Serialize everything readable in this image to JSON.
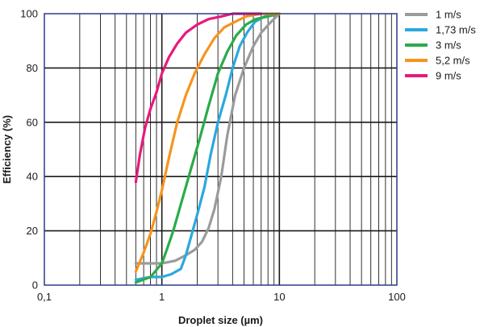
{
  "chart_data": {
    "type": "line",
    "title": "",
    "xlabel": "Droplet size (µm)",
    "ylabel": "Efficiency (%)",
    "x_scale": "log",
    "xlim": [
      0.1,
      100
    ],
    "ylim": [
      0,
      100
    ],
    "grid": true,
    "legend_position": "right",
    "x_tick_labels": [
      {
        "value": 0.1,
        "label": "0,1"
      },
      {
        "value": 1,
        "label": "1"
      },
      {
        "value": 10,
        "label": "10"
      },
      {
        "value": 100,
        "label": "100"
      }
    ],
    "y_tick_labels": [
      {
        "value": 0,
        "label": "0"
      },
      {
        "value": 20,
        "label": "20"
      },
      {
        "value": 40,
        "label": "40"
      },
      {
        "value": 60,
        "label": "60"
      },
      {
        "value": 80,
        "label": "80"
      },
      {
        "value": 100,
        "label": "100"
      }
    ],
    "series": [
      {
        "name": "1 m/s",
        "color": "#9b9b9b",
        "x": [
          0.6,
          0.8,
          1.0,
          1.3,
          1.6,
          1.9,
          2.2,
          2.5,
          2.8,
          3.2,
          3.6,
          4.2,
          5.0,
          6.0,
          7.0,
          8.5,
          10.0
        ],
        "y": [
          8,
          8,
          8,
          9,
          11,
          13,
          16,
          21,
          28,
          40,
          55,
          70,
          80,
          88,
          93,
          97,
          100
        ]
      },
      {
        "name": "1,73 m/s",
        "color": "#2aa8df",
        "x": [
          0.6,
          0.8,
          1.0,
          1.2,
          1.45,
          1.6,
          1.8,
          2.0,
          2.3,
          2.6,
          3.0,
          3.5,
          4.0,
          4.6,
          5.3,
          6.2,
          7.5,
          10.0
        ],
        "y": [
          2,
          3,
          3,
          4,
          6,
          11,
          19,
          26,
          36,
          48,
          60,
          70,
          80,
          88,
          93,
          97,
          99,
          100
        ]
      },
      {
        "name": "3 m/s",
        "color": "#2bab4a",
        "x": [
          0.6,
          0.8,
          1.0,
          1.1,
          1.25,
          1.5,
          1.8,
          2.1,
          2.5,
          3.0,
          3.6,
          4.3,
          5.2,
          6.3,
          8.0,
          10.0
        ],
        "y": [
          1,
          3,
          8,
          13,
          20,
          32,
          44,
          54,
          66,
          78,
          86,
          92,
          96,
          98,
          99,
          100
        ]
      },
      {
        "name": "5,2 m/s",
        "color": "#f7941d",
        "x": [
          0.6,
          0.7,
          0.8,
          0.9,
          1.0,
          1.15,
          1.35,
          1.6,
          1.9,
          2.3,
          2.8,
          3.4,
          4.2,
          5.2,
          7.0,
          10.0
        ],
        "y": [
          5,
          12,
          19,
          27,
          35,
          47,
          60,
          70,
          78,
          85,
          91,
          95,
          97,
          99,
          100,
          100
        ]
      },
      {
        "name": "9 m/s",
        "color": "#e8197c",
        "x": [
          0.6,
          0.65,
          0.72,
          0.8,
          0.9,
          1.0,
          1.15,
          1.35,
          1.6,
          2.0,
          2.5,
          3.2,
          4.0,
          5.5,
          7.0
        ],
        "y": [
          38,
          48,
          58,
          65,
          71,
          78,
          84,
          89,
          93,
          96,
          98,
          99,
          100,
          100,
          100
        ]
      }
    ]
  }
}
